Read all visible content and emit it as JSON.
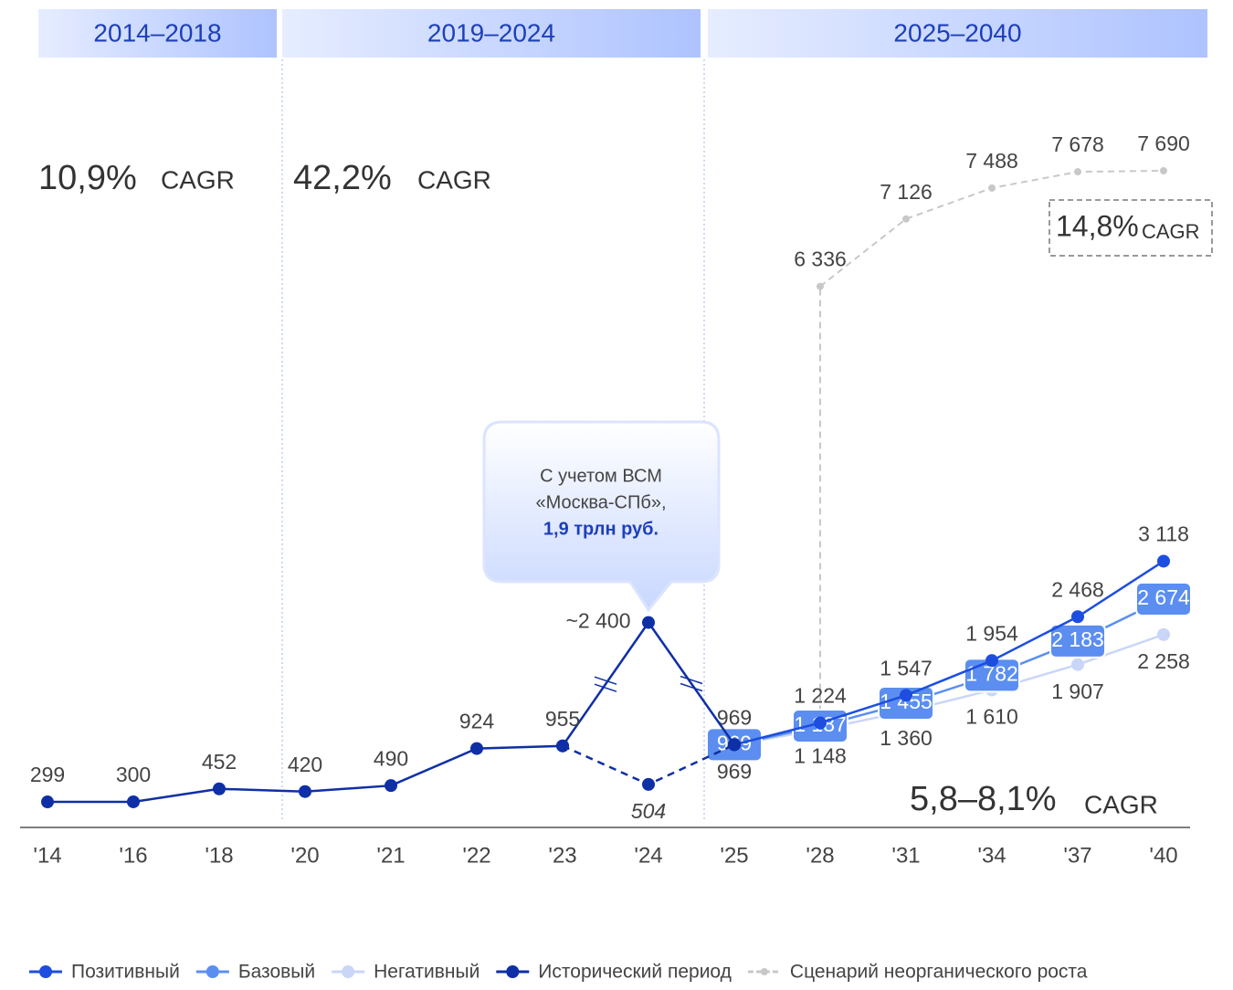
{
  "chart_data": {
    "type": "line",
    "categories": [
      "'14",
      "'16",
      "'18",
      "'20",
      "'21",
      "'22",
      "'23",
      "'24",
      "'25",
      "'28",
      "'31",
      "'34",
      "'37",
      "'40"
    ],
    "periods": [
      {
        "label": "2014–2018",
        "cagr": "10,9%"
      },
      {
        "label": "2019–2024",
        "cagr": "42,2%"
      },
      {
        "label": "2025–2040"
      }
    ],
    "cagr_unit": "CAGR",
    "forecast_cagr": "5,8–8,1%",
    "inorganic_cagr": "14,8%",
    "callout": [
      "С учетом ВСМ",
      "«Москва-СПб»,",
      "1,9 трлн руб."
    ],
    "series": [
      {
        "name": "Позитивный",
        "color": "#1d4ee0",
        "label_pos": "above",
        "values": [
          null,
          null,
          null,
          null,
          null,
          null,
          null,
          null,
          969,
          1224,
          1547,
          1954,
          2468,
          3118
        ],
        "value_labels": [
          null,
          null,
          null,
          null,
          null,
          null,
          null,
          null,
          "969",
          "1 224",
          "1 547",
          "1 954",
          "2 468",
          "3 118"
        ]
      },
      {
        "name": "Базовый",
        "color": "#5b8ef0",
        "label_pos": "box",
        "values": [
          null,
          null,
          null,
          null,
          null,
          null,
          null,
          null,
          969,
          1187,
          1455,
          1782,
          2183,
          2674
        ],
        "value_labels": [
          null,
          null,
          null,
          null,
          null,
          null,
          null,
          null,
          "969",
          "1 187",
          "1 455",
          "1 782",
          "2 183",
          "2 674"
        ]
      },
      {
        "name": "Негативный",
        "color": "#c9d6f7",
        "label_pos": "below",
        "values": [
          null,
          null,
          null,
          null,
          null,
          null,
          null,
          null,
          969,
          1148,
          1360,
          1610,
          1907,
          2258
        ],
        "value_labels": [
          null,
          null,
          null,
          null,
          null,
          null,
          null,
          null,
          "969",
          "1 148",
          "1 360",
          "1 610",
          "1 907",
          "2 258"
        ]
      },
      {
        "name": "Исторический период",
        "color": "#0f2fa6",
        "label_pos": "above",
        "values": [
          299,
          300,
          452,
          420,
          490,
          924,
          955,
          2400,
          969,
          null,
          null,
          null,
          null,
          null
        ],
        "value_labels": [
          "299",
          "300",
          "452",
          "420",
          "490",
          "924",
          "955",
          "~2 400",
          null,
          null,
          null,
          null,
          null,
          null
        ]
      },
      {
        "color": "#0f2fa6",
        "dashed": true,
        "legend": false,
        "label_pos": "below",
        "values": [
          null,
          null,
          null,
          null,
          null,
          null,
          955,
          504,
          969,
          null,
          null,
          null,
          null,
          null
        ],
        "value_labels": [
          null,
          null,
          null,
          null,
          null,
          null,
          null,
          "504",
          null,
          null,
          null,
          null,
          null,
          null
        ]
      },
      {
        "name": "Сценарий неорганического роста",
        "color": "#c8c8c8",
        "dashed": true,
        "label_pos": "above",
        "values": [
          null,
          null,
          null,
          null,
          null,
          null,
          null,
          null,
          null,
          6336,
          7126,
          7488,
          7678,
          7690
        ],
        "value_labels": [
          null,
          null,
          null,
          null,
          null,
          null,
          null,
          null,
          null,
          "6 336",
          "7 126",
          "7 488",
          "7 678",
          "7 690"
        ]
      }
    ]
  }
}
